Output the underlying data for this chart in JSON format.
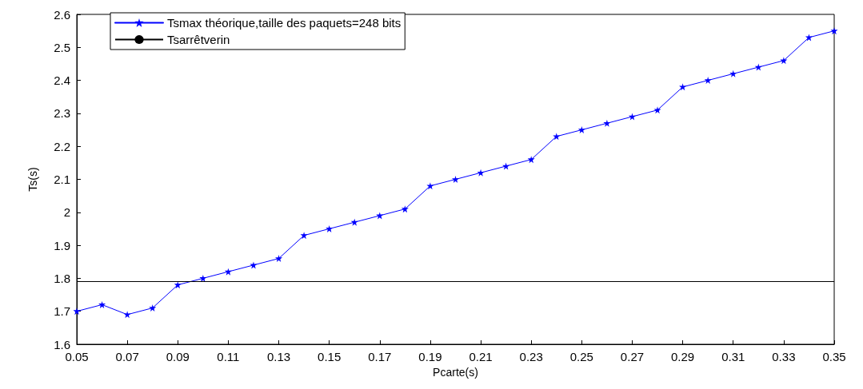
{
  "chart_data": {
    "type": "line",
    "xlabel": "Pcarte(s)",
    "ylabel": "Ts(s)",
    "x": [
      0.05,
      0.06,
      0.07,
      0.08,
      0.09,
      0.1,
      0.11,
      0.12,
      0.13,
      0.14,
      0.15,
      0.16,
      0.17,
      0.18,
      0.19,
      0.2,
      0.21,
      0.22,
      0.23,
      0.24,
      0.25,
      0.26,
      0.27,
      0.28,
      0.29,
      0.3,
      0.31,
      0.32,
      0.33,
      0.34,
      0.35
    ],
    "series": [
      {
        "name": "Tsmax théorique,taille des paquets=248 bits",
        "color": "#0000ff",
        "values": [
          1.7,
          1.72,
          1.69,
          1.71,
          1.78,
          1.8,
          1.82,
          1.84,
          1.86,
          1.93,
          1.95,
          1.97,
          1.99,
          2.01,
          2.08,
          2.1,
          2.12,
          2.14,
          2.16,
          2.23,
          2.25,
          2.27,
          2.29,
          2.31,
          2.38,
          2.4,
          2.42,
          2.44,
          2.46,
          2.53,
          2.55
        ]
      }
    ],
    "ref_lines": [
      {
        "axis": "y",
        "value": 1.79,
        "label": "Tsarrêtverin",
        "color": "#000000"
      }
    ],
    "xlim": [
      0.05,
      0.35
    ],
    "xticks": [
      0.05,
      0.07,
      0.09,
      0.11,
      0.13,
      0.15,
      0.17,
      0.19,
      0.21,
      0.23,
      0.25,
      0.27,
      0.29,
      0.31,
      0.33,
      0.35
    ],
    "ylim": [
      1.6,
      2.6
    ],
    "yticks": [
      1.6,
      1.7,
      1.8,
      1.9,
      2,
      2.1,
      2.2,
      2.3,
      2.4,
      2.5,
      2.6
    ],
    "grid": false,
    "legend": "top left",
    "marker": "star",
    "line_style": "solid"
  }
}
